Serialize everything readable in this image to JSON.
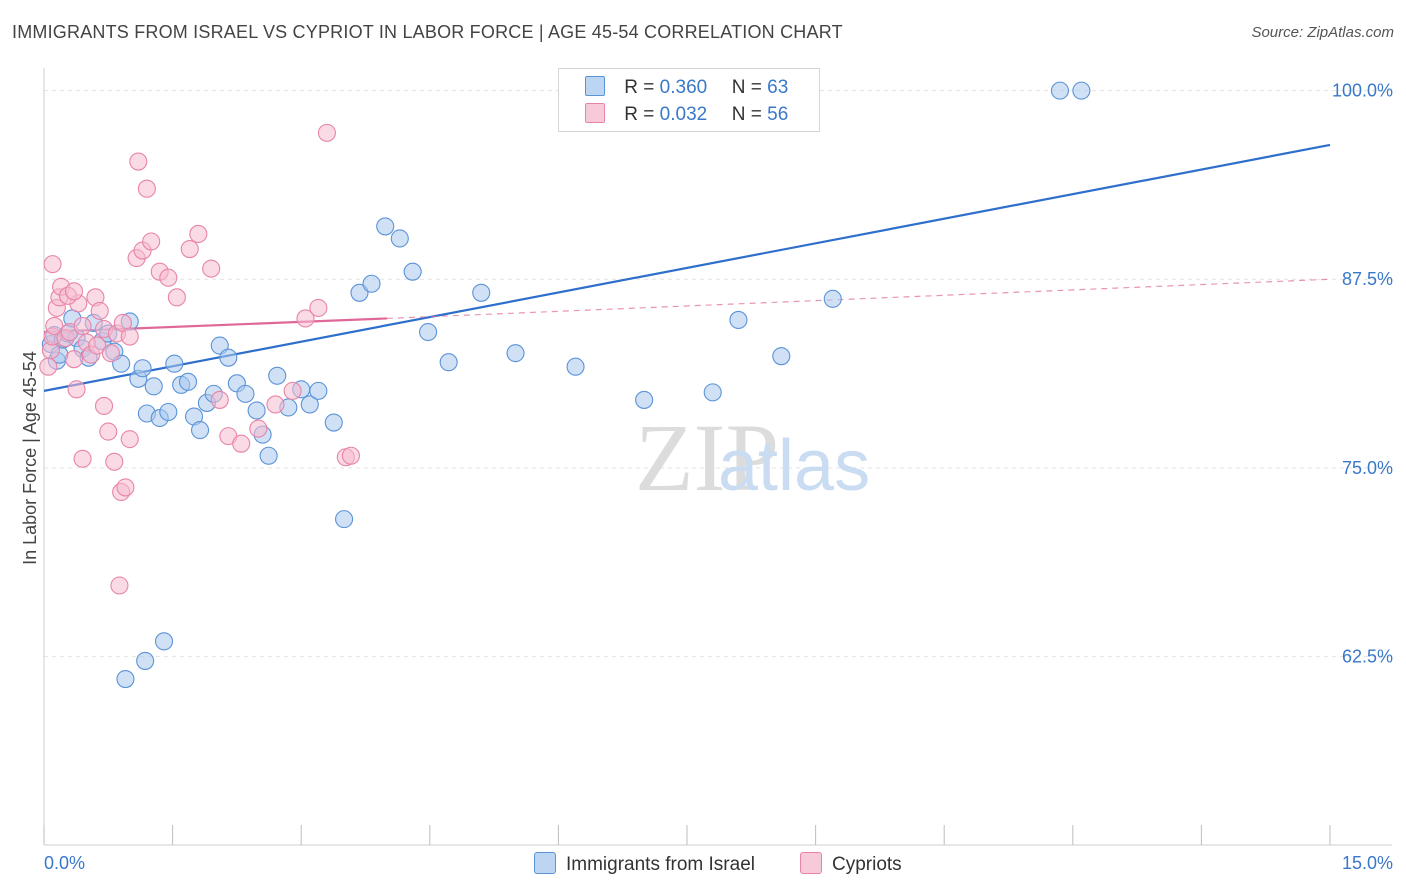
{
  "title": "IMMIGRANTS FROM ISRAEL VS CYPRIOT IN LABOR FORCE | AGE 45-54 CORRELATION CHART",
  "source": "Source: ZipAtlas.com",
  "watermark": {
    "zip": "ZIP",
    "atlas": "atlas"
  },
  "legend": {
    "series1": {
      "r_label": "R =",
      "r_value": "0.360",
      "n_label": "N =",
      "n_value": "63"
    },
    "series2": {
      "r_label": "R =",
      "r_value": "0.032",
      "n_label": "N =",
      "n_value": "56"
    }
  },
  "bottom_legend": {
    "series1": "Immigrants from Israel",
    "series2": "Cypriots"
  },
  "colors": {
    "blue_fill": "#a9c8ee",
    "blue_stroke": "#5b93d8",
    "blue_line": "#2f6fcc",
    "pink_fill": "#f6bccf",
    "pink_stroke": "#e884a8",
    "pink_line": "#e06898",
    "tick_label": "#3a78c9",
    "grid": "#e3e3e3"
  },
  "chart_data": {
    "type": "scatter",
    "title": "IMMIGRANTS FROM ISRAEL VS CYPRIOT IN LABOR FORCE | AGE 45-54 CORRELATION CHART",
    "xlabel": "",
    "ylabel": "In Labor Force | Age 45-54",
    "xlim": [
      0,
      15
    ],
    "ylim": [
      50,
      101.5
    ],
    "x_tick_labels": [
      "0.0%",
      "15.0%"
    ],
    "y_ticks": [
      {
        "value": 100,
        "label": "100.0%"
      },
      {
        "value": 87.5,
        "label": "87.5%"
      },
      {
        "value": 75,
        "label": "75.0%"
      },
      {
        "value": 62.5,
        "label": "62.5%"
      }
    ],
    "series": [
      {
        "name": "Immigrants from Israel",
        "R": 0.36,
        "N": 63,
        "trend": {
          "x0": 0,
          "y0": 80.1,
          "x1": 15,
          "y1": 96.4,
          "style": "solid"
        },
        "points": [
          [
            0.08,
            83.2
          ],
          [
            0.12,
            83.8
          ],
          [
            0.15,
            82.1
          ],
          [
            0.18,
            82.5
          ],
          [
            0.22,
            83.5
          ],
          [
            0.28,
            83.9
          ],
          [
            0.33,
            84.9
          ],
          [
            0.38,
            83.6
          ],
          [
            0.45,
            82.9
          ],
          [
            0.52,
            82.3
          ],
          [
            0.58,
            84.6
          ],
          [
            0.68,
            83.4
          ],
          [
            0.75,
            83.9
          ],
          [
            0.82,
            82.7
          ],
          [
            0.9,
            81.9
          ],
          [
            1.0,
            84.7
          ],
          [
            1.1,
            80.9
          ],
          [
            1.15,
            81.6
          ],
          [
            1.2,
            78.6
          ],
          [
            1.28,
            80.4
          ],
          [
            1.35,
            78.3
          ],
          [
            1.45,
            78.7
          ],
          [
            1.52,
            81.9
          ],
          [
            1.6,
            80.5
          ],
          [
            1.68,
            80.7
          ],
          [
            1.75,
            78.4
          ],
          [
            1.82,
            77.5
          ],
          [
            1.9,
            79.3
          ],
          [
            1.98,
            79.9
          ],
          [
            2.05,
            83.1
          ],
          [
            2.15,
            82.3
          ],
          [
            2.25,
            80.6
          ],
          [
            2.35,
            79.9
          ],
          [
            2.48,
            78.8
          ],
          [
            2.55,
            77.2
          ],
          [
            2.62,
            75.8
          ],
          [
            2.72,
            81.1
          ],
          [
            2.85,
            79.0
          ],
          [
            3.0,
            80.2
          ],
          [
            3.1,
            79.2
          ],
          [
            3.2,
            80.1
          ],
          [
            3.38,
            78.0
          ],
          [
            3.5,
            71.6
          ],
          [
            3.68,
            86.6
          ],
          [
            3.82,
            87.2
          ],
          [
            3.98,
            91.0
          ],
          [
            4.15,
            90.2
          ],
          [
            4.3,
            88.0
          ],
          [
            4.48,
            84.0
          ],
          [
            4.72,
            82.0
          ],
          [
            5.1,
            86.6
          ],
          [
            5.5,
            82.6
          ],
          [
            6.2,
            81.7
          ],
          [
            7.0,
            79.5
          ],
          [
            7.8,
            80.0
          ],
          [
            8.1,
            84.8
          ],
          [
            8.6,
            82.4
          ],
          [
            9.2,
            86.2
          ],
          [
            11.85,
            100.0
          ],
          [
            12.1,
            100.0
          ],
          [
            1.4,
            63.5
          ],
          [
            1.18,
            62.2
          ],
          [
            0.95,
            61.0
          ]
        ]
      },
      {
        "name": "Cypriots",
        "R": 0.032,
        "N": 56,
        "trend": {
          "x0": 0,
          "y0": 84.0,
          "x1": 4.0,
          "y1": 84.9,
          "style": "solid",
          "extend_to": {
            "x": 15,
            "y": 87.5,
            "style": "dashed"
          }
        },
        "points": [
          [
            0.05,
            81.7
          ],
          [
            0.08,
            82.8
          ],
          [
            0.1,
            83.7
          ],
          [
            0.12,
            84.4
          ],
          [
            0.15,
            85.6
          ],
          [
            0.18,
            86.3
          ],
          [
            0.2,
            87.0
          ],
          [
            0.25,
            83.6
          ],
          [
            0.3,
            84.0
          ],
          [
            0.35,
            82.2
          ],
          [
            0.4,
            85.9
          ],
          [
            0.45,
            84.4
          ],
          [
            0.5,
            83.3
          ],
          [
            0.55,
            82.5
          ],
          [
            0.62,
            83.1
          ],
          [
            0.7,
            84.2
          ],
          [
            0.78,
            82.6
          ],
          [
            0.85,
            83.9
          ],
          [
            0.92,
            84.6
          ],
          [
            1.0,
            83.7
          ],
          [
            0.1,
            88.5
          ],
          [
            0.28,
            86.4
          ],
          [
            0.35,
            86.7
          ],
          [
            0.38,
            80.2
          ],
          [
            0.45,
            75.6
          ],
          [
            0.6,
            86.3
          ],
          [
            0.65,
            85.4
          ],
          [
            0.7,
            79.1
          ],
          [
            0.75,
            77.4
          ],
          [
            0.82,
            75.4
          ],
          [
            0.9,
            73.4
          ],
          [
            0.95,
            73.7
          ],
          [
            1.0,
            76.9
          ],
          [
            1.08,
            88.9
          ],
          [
            1.15,
            89.4
          ],
          [
            1.25,
            90.0
          ],
          [
            1.35,
            88.0
          ],
          [
            1.45,
            87.6
          ],
          [
            1.55,
            86.3
          ],
          [
            1.7,
            89.5
          ],
          [
            1.8,
            90.5
          ],
          [
            1.95,
            88.2
          ],
          [
            2.05,
            79.5
          ],
          [
            2.15,
            77.1
          ],
          [
            2.3,
            76.6
          ],
          [
            2.5,
            77.6
          ],
          [
            2.7,
            79.2
          ],
          [
            2.9,
            80.1
          ],
          [
            3.05,
            84.9
          ],
          [
            3.2,
            85.6
          ],
          [
            3.3,
            97.2
          ],
          [
            3.52,
            75.7
          ],
          [
            3.58,
            75.8
          ],
          [
            1.1,
            95.3
          ],
          [
            1.2,
            93.5
          ],
          [
            0.88,
            67.2
          ]
        ]
      }
    ]
  }
}
